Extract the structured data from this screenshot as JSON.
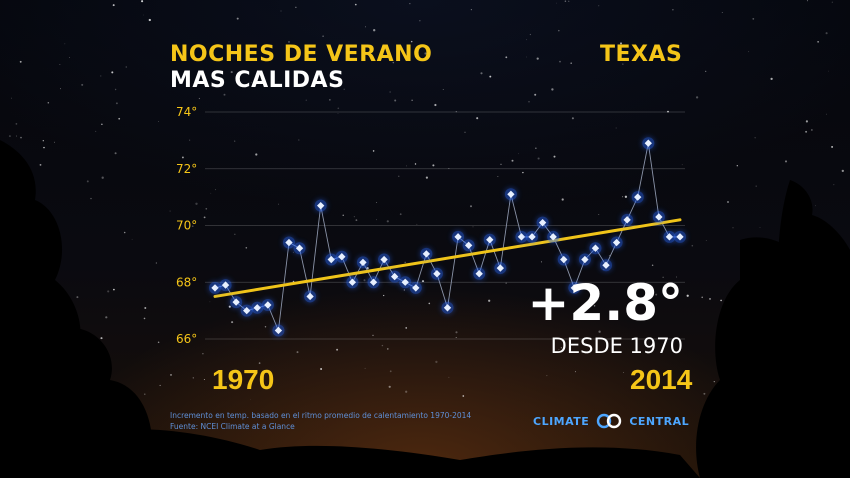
{
  "title_line1": "NOCHES DE VERANO",
  "title_line2": "MAS CALIDAS",
  "region": "TEXAS",
  "headline_value": "+2.8°",
  "headline_caption": "DESDE 1970",
  "footnote_line1": "Incremento en temp. basado en el ritmo promedio de calentamiento 1970-2014",
  "footnote_line2": "Fuente: NCEI Climate at a Glance",
  "brand_left": "CLIMATE",
  "brand_right": "CENTRAL",
  "colors": {
    "accent_yellow": "#f5c518",
    "trend_line": "#f0c419",
    "point": "#e8f0ff",
    "point_glow": "#2c6bff",
    "series_line": "#8a93a8",
    "footnote": "#5f8fd6",
    "brand": "#4da6ff"
  },
  "chart_data": {
    "type": "line",
    "x_start_label": "1970",
    "x_end_label": "2014",
    "x": [
      1970,
      1971,
      1972,
      1973,
      1974,
      1975,
      1976,
      1977,
      1978,
      1979,
      1980,
      1981,
      1982,
      1983,
      1984,
      1985,
      1986,
      1987,
      1988,
      1989,
      1990,
      1991,
      1992,
      1993,
      1994,
      1995,
      1996,
      1997,
      1998,
      1999,
      2000,
      2001,
      2002,
      2003,
      2004,
      2005,
      2006,
      2007,
      2008,
      2009,
      2010,
      2011,
      2012,
      2013,
      2014
    ],
    "y": [
      67.8,
      67.9,
      67.3,
      67.0,
      67.1,
      67.2,
      66.3,
      69.4,
      69.2,
      67.5,
      70.7,
      68.8,
      68.9,
      68.0,
      68.7,
      68.0,
      68.8,
      68.2,
      68.0,
      67.8,
      69.0,
      68.3,
      67.1,
      69.6,
      69.3,
      68.3,
      69.5,
      68.5,
      71.1,
      69.6,
      69.6,
      70.1,
      69.6,
      68.8,
      67.8,
      68.8,
      69.2,
      68.6,
      69.4,
      70.2,
      71.0,
      72.9,
      70.3,
      69.6,
      69.6
    ],
    "ylim": [
      66,
      74
    ],
    "yticks": [
      "66°",
      "68°",
      "70°",
      "72°",
      "74°"
    ],
    "ytick_values": [
      66,
      68,
      70,
      72,
      74
    ],
    "trend": {
      "y_start": 67.5,
      "y_end": 70.2
    },
    "grid": true
  }
}
